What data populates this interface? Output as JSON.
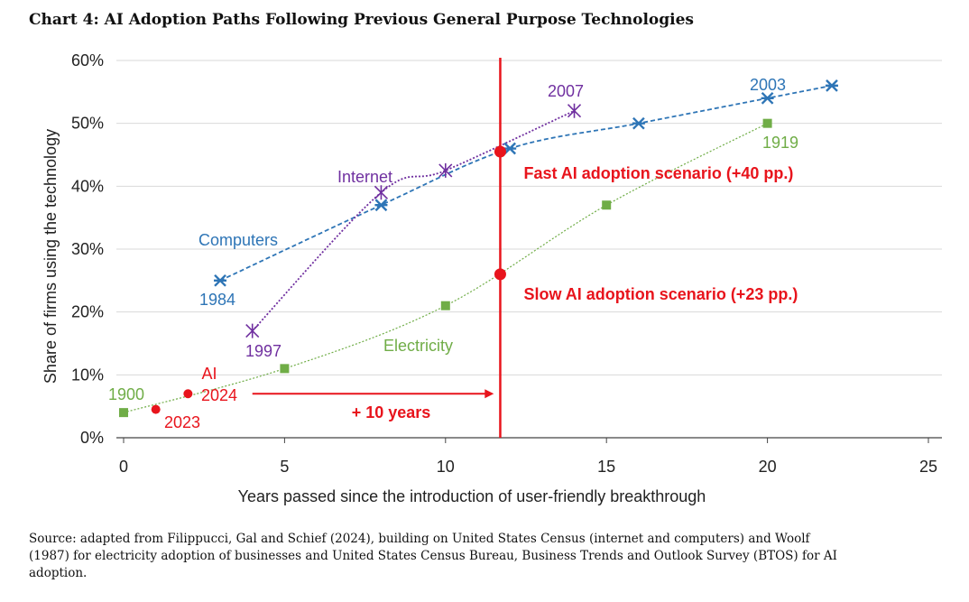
{
  "title": "Chart 4: AI Adoption Paths Following Previous General Purpose Technologies",
  "source": "Source: adapted from Filippucci, Gal and Schief (2024), building on United States Census (internet and computers) and Woolf (1987) for electricity adoption of businesses and United States Census Bureau, Business Trends and Outlook Survey (BTOS) for AI adoption.",
  "colors": {
    "computers": "#2e75b6",
    "internet": "#7030a0",
    "electricity": "#70ad47",
    "ai": "#e8141c",
    "grid": "#d9d9d9"
  },
  "chart_data": {
    "type": "scatter",
    "xlabel": "Years passed since the introduction of user-friendly breakthrough",
    "ylabel": "Share of firms using the technology",
    "xlim": [
      0,
      25
    ],
    "ylim": [
      0,
      60
    ],
    "x_ticks": [
      "0",
      "5",
      "10",
      "15",
      "20",
      "25"
    ],
    "y_ticks": [
      "0%",
      "10%",
      "20%",
      "30%",
      "40%",
      "50%",
      "60%"
    ],
    "grid": true,
    "series": [
      {
        "name": "Computers",
        "marker": "star",
        "trend": "dashed",
        "points": [
          [
            3,
            25
          ],
          [
            8,
            37
          ],
          [
            12,
            46
          ],
          [
            16,
            50
          ],
          [
            20,
            54
          ],
          [
            22,
            56
          ]
        ],
        "start_label": "1984",
        "end_label": "2003"
      },
      {
        "name": "Internet",
        "marker": "x",
        "trend": "dotted",
        "points": [
          [
            4,
            17
          ],
          [
            8,
            39
          ],
          [
            10,
            42.5
          ],
          [
            14,
            52
          ]
        ],
        "start_label": "1997",
        "end_label": "2007"
      },
      {
        "name": "Electricity",
        "marker": "square",
        "trend": "dotted",
        "points": [
          [
            0,
            4
          ],
          [
            5,
            11
          ],
          [
            10,
            21
          ],
          [
            15,
            37
          ],
          [
            20,
            50
          ]
        ],
        "start_label": "1900",
        "end_label": "1919"
      },
      {
        "name": "AI",
        "marker": "circle",
        "points": [
          [
            1,
            4.5
          ],
          [
            2,
            7
          ]
        ],
        "labels": [
          "2023",
          "2024"
        ]
      }
    ],
    "scenarios": [
      {
        "label": "Fast AI adoption scenario (+40 pp.)",
        "x": 11.7,
        "y": 45.5
      },
      {
        "label": "Slow AI adoption scenario (+23 pp.)",
        "x": 11.7,
        "y": 26
      }
    ],
    "vline": 11.7,
    "arrow": {
      "label": "+ 10 years",
      "from": 4,
      "to": 11.5,
      "y": 7
    }
  }
}
